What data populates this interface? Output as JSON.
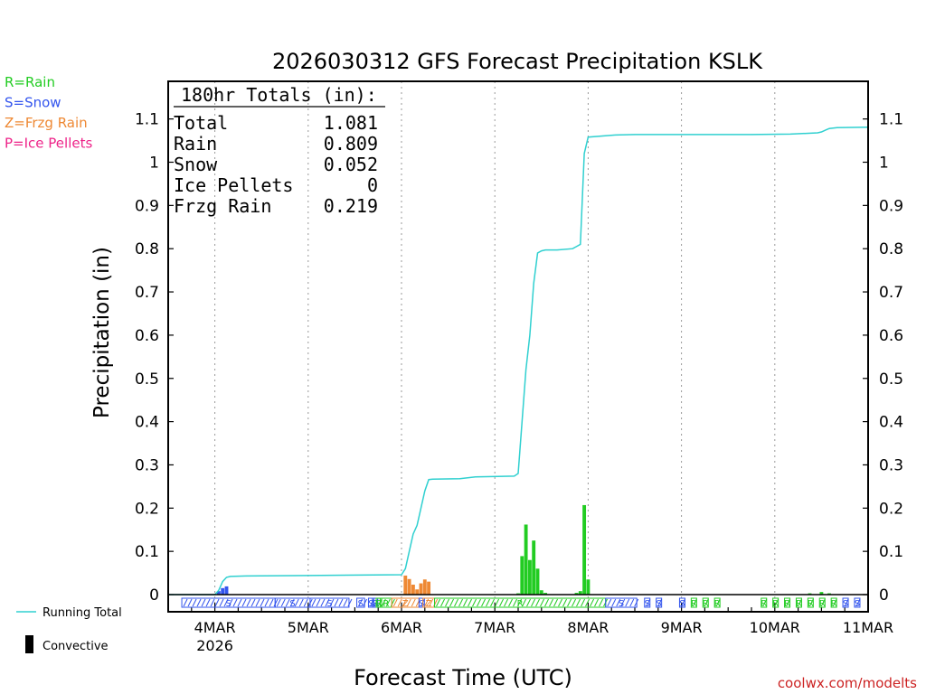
{
  "chart_data": {
    "type": "bar+line",
    "title": "2026030312 GFS Forecast Precipitation KSLK",
    "ylabel": "Precipitation (in)",
    "xlabel": "Forecast Time (UTC)",
    "ylim": [
      0,
      1.18
    ],
    "xlim_hours": [
      0,
      180
    ],
    "y_ticks": [
      {
        "v": 0,
        "label": "0"
      },
      {
        "v": 0.1,
        "label": "0.1"
      },
      {
        "v": 0.2,
        "label": "0.2"
      },
      {
        "v": 0.3,
        "label": "0.3"
      },
      {
        "v": 0.4,
        "label": "0.4"
      },
      {
        "v": 0.5,
        "label": "0.5"
      },
      {
        "v": 0.6,
        "label": "0.6"
      },
      {
        "v": 0.7,
        "label": "0.7"
      },
      {
        "v": 0.8,
        "label": "0.8"
      },
      {
        "v": 0.9,
        "label": "0.9"
      },
      {
        "v": 1.0,
        "label": "1"
      },
      {
        "v": 1.1,
        "label": "1.1"
      }
    ],
    "x_ticks": [
      {
        "h": 12,
        "label": "4MAR",
        "sub": "2026"
      },
      {
        "h": 36,
        "label": "5MAR",
        "sub": ""
      },
      {
        "h": 60,
        "label": "6MAR",
        "sub": ""
      },
      {
        "h": 84,
        "label": "7MAR",
        "sub": ""
      },
      {
        "h": 108,
        "label": "8MAR",
        "sub": ""
      },
      {
        "h": 132,
        "label": "9MAR",
        "sub": ""
      },
      {
        "h": 156,
        "label": "10MAR",
        "sub": ""
      },
      {
        "h": 180,
        "label": "11MAR",
        "sub": ""
      }
    ],
    "running_total": {
      "name": "Running Total",
      "color": "#30d0d0",
      "points": [
        [
          0,
          0
        ],
        [
          12,
          0
        ],
        [
          13,
          0.01
        ],
        [
          14,
          0.03
        ],
        [
          15,
          0.04
        ],
        [
          16,
          0.042
        ],
        [
          20,
          0.043
        ],
        [
          36,
          0.044
        ],
        [
          60,
          0.046
        ],
        [
          61,
          0.06
        ],
        [
          62,
          0.1
        ],
        [
          63,
          0.14
        ],
        [
          64,
          0.16
        ],
        [
          65,
          0.2
        ],
        [
          66,
          0.24
        ],
        [
          67,
          0.266
        ],
        [
          68,
          0.267
        ],
        [
          75,
          0.268
        ],
        [
          79,
          0.272
        ],
        [
          89,
          0.274
        ],
        [
          90,
          0.28
        ],
        [
          91,
          0.4
        ],
        [
          92,
          0.52
        ],
        [
          93,
          0.6
        ],
        [
          94,
          0.72
        ],
        [
          95,
          0.79
        ],
        [
          96,
          0.795
        ],
        [
          97,
          0.797
        ],
        [
          100,
          0.797
        ],
        [
          104,
          0.8
        ],
        [
          106,
          0.81
        ],
        [
          107,
          1.02
        ],
        [
          108,
          1.058
        ],
        [
          115,
          1.063
        ],
        [
          120,
          1.064
        ],
        [
          150,
          1.064
        ],
        [
          160,
          1.065
        ],
        [
          167,
          1.068
        ],
        [
          168,
          1.07
        ],
        [
          169,
          1.074
        ],
        [
          170,
          1.078
        ],
        [
          172,
          1.08
        ],
        [
          180,
          1.081
        ]
      ]
    },
    "bars": [
      {
        "h": 13,
        "v": 0.008,
        "type": "S"
      },
      {
        "h": 14,
        "v": 0.015,
        "type": "S"
      },
      {
        "h": 15,
        "v": 0.019,
        "type": "S"
      },
      {
        "h": 61,
        "v": 0.044,
        "type": "Z"
      },
      {
        "h": 62,
        "v": 0.036,
        "type": "Z"
      },
      {
        "h": 63,
        "v": 0.023,
        "type": "Z"
      },
      {
        "h": 64,
        "v": 0.012,
        "type": "Z"
      },
      {
        "h": 65,
        "v": 0.026,
        "type": "Z"
      },
      {
        "h": 66,
        "v": 0.035,
        "type": "Z"
      },
      {
        "h": 67,
        "v": 0.03,
        "type": "Z"
      },
      {
        "h": 90,
        "v": 0.003,
        "type": "R"
      },
      {
        "h": 91,
        "v": 0.089,
        "type": "R"
      },
      {
        "h": 92,
        "v": 0.162,
        "type": "R"
      },
      {
        "h": 93,
        "v": 0.08,
        "type": "R"
      },
      {
        "h": 94,
        "v": 0.125,
        "type": "R"
      },
      {
        "h": 95,
        "v": 0.06,
        "type": "R"
      },
      {
        "h": 96,
        "v": 0.01,
        "type": "R"
      },
      {
        "h": 97,
        "v": 0.004,
        "type": "R"
      },
      {
        "h": 105,
        "v": 0.004,
        "type": "R"
      },
      {
        "h": 106,
        "v": 0.008,
        "type": "R"
      },
      {
        "h": 107,
        "v": 0.207,
        "type": "R"
      },
      {
        "h": 108,
        "v": 0.035,
        "type": "R"
      },
      {
        "h": 165,
        "v": 0.003,
        "type": "R"
      },
      {
        "h": 168,
        "v": 0.006,
        "type": "R"
      },
      {
        "h": 170,
        "v": 0.003,
        "type": "R"
      }
    ],
    "ptype_strip": [
      {
        "h0": 4,
        "h1": 27,
        "type": "S"
      },
      {
        "h0": 28,
        "h1": 36,
        "type": "S"
      },
      {
        "h0": 37,
        "h1": 46,
        "type": "S"
      },
      {
        "h0": 49,
        "h1": 50,
        "type": "S"
      },
      {
        "h0": 52,
        "h1": 52,
        "type": "S"
      },
      {
        "h0": 53,
        "h1": 53,
        "type": "S"
      },
      {
        "h0": 54,
        "h1": 54,
        "type": "R"
      },
      {
        "h0": 55,
        "h1": 57,
        "type": "R"
      },
      {
        "h0": 58,
        "h1": 64,
        "type": "Z"
      },
      {
        "h0": 65,
        "h1": 65,
        "type": "S"
      },
      {
        "h0": 66,
        "h1": 68,
        "type": "Z"
      },
      {
        "h0": 69,
        "h1": 112,
        "type": "R"
      },
      {
        "h0": 113,
        "h1": 120,
        "type": "S"
      },
      {
        "h0": 123,
        "h1": 123,
        "type": "S"
      },
      {
        "h0": 126,
        "h1": 126,
        "type": "S"
      },
      {
        "h0": 132,
        "h1": 132,
        "type": "S"
      },
      {
        "h0": 135,
        "h1": 135,
        "type": "R"
      },
      {
        "h0": 138,
        "h1": 138,
        "type": "R"
      },
      {
        "h0": 141,
        "h1": 141,
        "type": "R"
      },
      {
        "h0": 153,
        "h1": 153,
        "type": "R"
      },
      {
        "h0": 156,
        "h1": 156,
        "type": "R"
      },
      {
        "h0": 159,
        "h1": 159,
        "type": "R"
      },
      {
        "h0": 162,
        "h1": 162,
        "type": "R"
      },
      {
        "h0": 165,
        "h1": 165,
        "type": "R"
      },
      {
        "h0": 168,
        "h1": 168,
        "type": "R"
      },
      {
        "h0": 171,
        "h1": 171,
        "type": "R"
      },
      {
        "h0": 174,
        "h1": 174,
        "type": "S"
      },
      {
        "h0": 177,
        "h1": 177,
        "type": "S"
      }
    ],
    "ptype_colors": {
      "R": "#22cc22",
      "S": "#3355ee",
      "Z": "#ee8833",
      "P": "#ee2288"
    },
    "totals": {
      "header": "180hr Totals (in):",
      "rows": [
        {
          "label": "Total",
          "value": "1.081"
        },
        {
          "label": "Rain",
          "value": "0.809"
        },
        {
          "label": "Snow",
          "value": "0.052"
        },
        {
          "label": "Ice Pellets",
          "value": "0"
        },
        {
          "label": "Frzg Rain",
          "value": "0.219"
        }
      ]
    },
    "ptype_legend": [
      {
        "label": "R=Rain",
        "color": "#22cc22"
      },
      {
        "label": "S=Snow",
        "color": "#3355ee"
      },
      {
        "label": "Z=Frzg Rain",
        "color": "#ee8833"
      },
      {
        "label": "P=Ice Pellets",
        "color": "#ee2288"
      }
    ],
    "legend": {
      "running_total": "Running Total",
      "convective": "Convective"
    }
  },
  "credit": "coolwx.com/modelts"
}
